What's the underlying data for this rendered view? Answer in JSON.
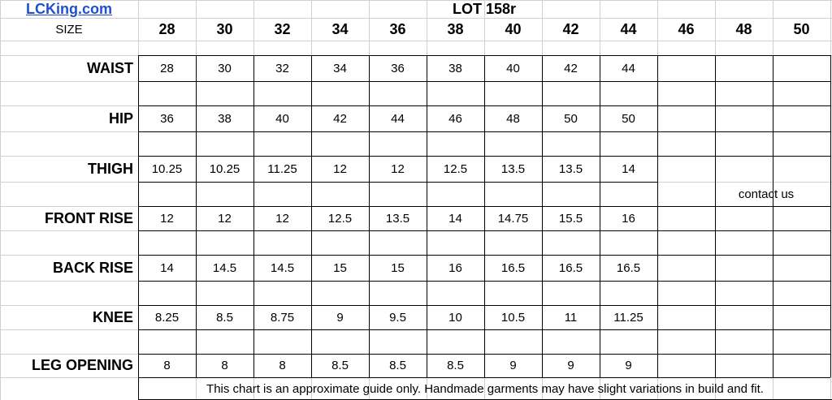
{
  "brand": "LCKing.com",
  "title": "LOT 158r",
  "size_label": "SIZE",
  "sizes": [
    "28",
    "30",
    "32",
    "34",
    "36",
    "38",
    "40",
    "42",
    "44",
    "46",
    "48",
    "50"
  ],
  "rows": [
    {
      "label": "WAIST",
      "values": [
        "28",
        "30",
        "32",
        "34",
        "36",
        "38",
        "40",
        "42",
        "44",
        "",
        "",
        ""
      ]
    },
    {
      "label": "HIP",
      "values": [
        "36",
        "38",
        "40",
        "42",
        "44",
        "46",
        "48",
        "50",
        "50",
        "",
        "",
        ""
      ]
    },
    {
      "label": "THIGH",
      "values": [
        "10.25",
        "10.25",
        "11.25",
        "12",
        "12",
        "12.5",
        "13.5",
        "13.5",
        "14",
        "",
        "",
        ""
      ]
    },
    {
      "label": "FRONT RISE",
      "values": [
        "12",
        "12",
        "12",
        "12.5",
        "13.5",
        "14",
        "14.75",
        "15.5",
        "16",
        "",
        "",
        ""
      ]
    },
    {
      "label": "BACK RISE",
      "values": [
        "14",
        "14.5",
        "14.5",
        "15",
        "15",
        "16",
        "16.5",
        "16.5",
        "16.5",
        "",
        "",
        ""
      ]
    },
    {
      "label": "KNEE",
      "values": [
        "8.25",
        "8.5",
        "8.75",
        "9",
        "9.5",
        "10",
        "10.5",
        "11",
        "11.25",
        "",
        "",
        ""
      ]
    },
    {
      "label": "LEG OPENING",
      "values": [
        "8",
        "8",
        "8",
        "8.5",
        "8.5",
        "8.5",
        "9",
        "9",
        "9",
        "",
        "",
        ""
      ]
    }
  ],
  "contact_note": "contact us",
  "disclaimer": "This chart is an approximate guide only. Handmade garments may have slight variations in build and fit.",
  "colors": {
    "brand": "#1f4fd1",
    "grid_light": "#d0d0d0",
    "grid_dark": "#000000"
  }
}
